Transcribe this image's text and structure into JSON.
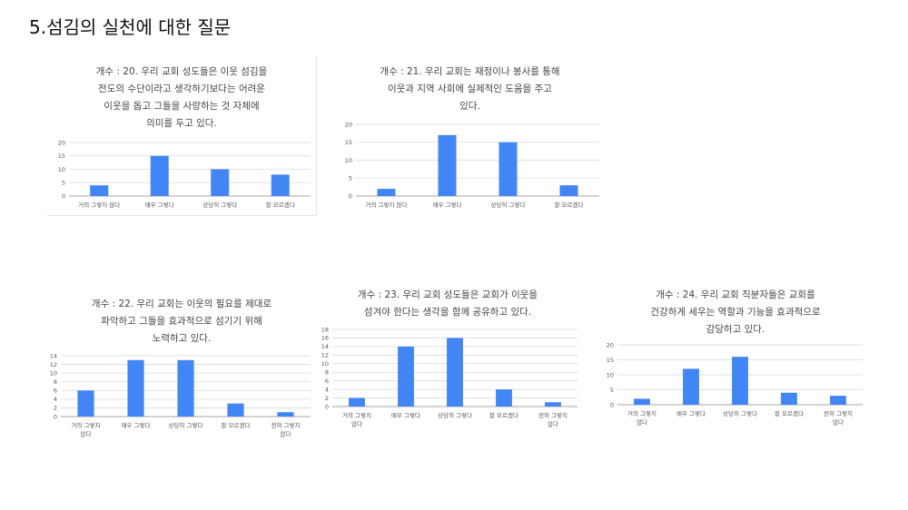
{
  "page": {
    "title": "5.섬김의 실천에 대한 질문"
  },
  "colors": {
    "bar": "#4285f4",
    "grid": "#d9d9d9",
    "axis": "#888888"
  },
  "chart_data": [
    {
      "type": "bar",
      "title": "개수 : 20. 우리 교회 성도들은 이웃 섬김을\n전도의 수단이라고 생각하기보다는 어려운\n이웃을 돕고 그들을 사랑하는 것 자체에\n의미를 두고 있다.",
      "categories": [
        "거의 그렇지 않다",
        "매우 그렇다",
        "상당히 그렇다",
        "잘 모르겠다"
      ],
      "values": [
        4,
        15,
        10,
        8
      ],
      "ylim": [
        0,
        20
      ],
      "yticks": [
        "0",
        "5",
        "10",
        "15",
        "20"
      ],
      "grid": true
    },
    {
      "type": "bar",
      "title": "개수 : 21. 우리 교회는 재정이나 봉사를 통해\n이웃과 지역 사회에 실제적인 도움을 주고\n있다.",
      "categories": [
        "거의 그렇지 않다",
        "매우 그렇다",
        "상당히 그렇다",
        "잘 모르겠다"
      ],
      "values": [
        2,
        17,
        15,
        3
      ],
      "ylim": [
        0,
        20
      ],
      "yticks": [
        "0",
        "5",
        "10",
        "15",
        "20"
      ],
      "grid": true
    },
    {
      "type": "bar",
      "title": "개수 : 22. 우리 교회는 이웃의 필요를 제대로\n파악하고 그들을 효과적으로 섬기기 위해\n노력하고 있다.",
      "categories": [
        "거의 그렇지\n않다",
        "매우 그렇다",
        "상당히 그렇다",
        "잘 모르겠다",
        "전혀 그렇지\n않다"
      ],
      "values": [
        6,
        13,
        13,
        3,
        1
      ],
      "ylim": [
        0,
        14
      ],
      "yticks": [
        "0",
        "2",
        "4",
        "6",
        "8",
        "10",
        "12",
        "14"
      ],
      "grid": true
    },
    {
      "type": "bar",
      "title": "개수 : 23. 우리 교회 성도들은 교회가 이웃을\n섬겨야 한다는 생각을 함께 공유하고 있다.",
      "categories": [
        "거의 그렇지\n않다",
        "매우 그렇다",
        "상당히 그렇다",
        "잘 모르겠다",
        "전혀 그렇지\n않다"
      ],
      "values": [
        2,
        14,
        16,
        4,
        1
      ],
      "ylim": [
        0,
        18
      ],
      "yticks": [
        "0",
        "2",
        "4",
        "6",
        "8",
        "10",
        "12",
        "14",
        "16",
        "18"
      ],
      "grid": true
    },
    {
      "type": "bar",
      "title": "개수 : 24. 우리 교회 직분자들은 교회를\n건강하게 세우는 역할과 기능을 효과적으로\n감당하고 있다.",
      "categories": [
        "거의 그렇지\n않다",
        "매우 그렇다",
        "상당히 그렇다",
        "잘 모르겠다",
        "전혀 그렇지\n않다"
      ],
      "values": [
        2,
        12,
        16,
        4,
        3
      ],
      "ylim": [
        0,
        20
      ],
      "yticks": [
        "0",
        "5",
        "10",
        "15",
        "20"
      ],
      "grid": true
    }
  ]
}
